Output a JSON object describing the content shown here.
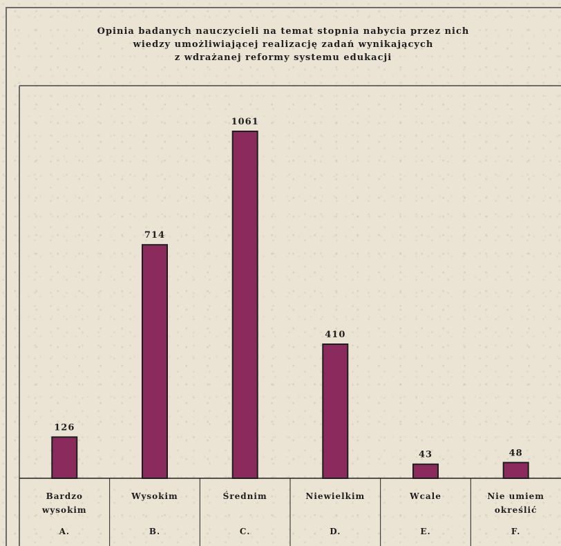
{
  "chart_data": {
    "type": "bar",
    "title_lines": [
      "Opinia badanych nauczycieli na temat stopnia nabycia przez nich",
      "wiedzy umożliwiającej realizację zadań wynikających",
      "z wdrażanej reformy systemu edukacji"
    ],
    "categories": [
      {
        "label_lines": [
          "Bardzo",
          "wysokim"
        ],
        "letter": "A."
      },
      {
        "label_lines": [
          "Wysokim"
        ],
        "letter": "B."
      },
      {
        "label_lines": [
          "Średnim"
        ],
        "letter": "C."
      },
      {
        "label_lines": [
          "Niewielkim"
        ],
        "letter": "D."
      },
      {
        "label_lines": [
          "Wcale"
        ],
        "letter": "E."
      },
      {
        "label_lines": [
          "Nie umiem",
          "określić"
        ],
        "letter": "F."
      }
    ],
    "values": [
      126,
      714,
      1061,
      410,
      43,
      48
    ],
    "ylim": [
      0,
      1061
    ],
    "bar_color": "#8b2a5c",
    "grid": false,
    "legend": "none"
  }
}
